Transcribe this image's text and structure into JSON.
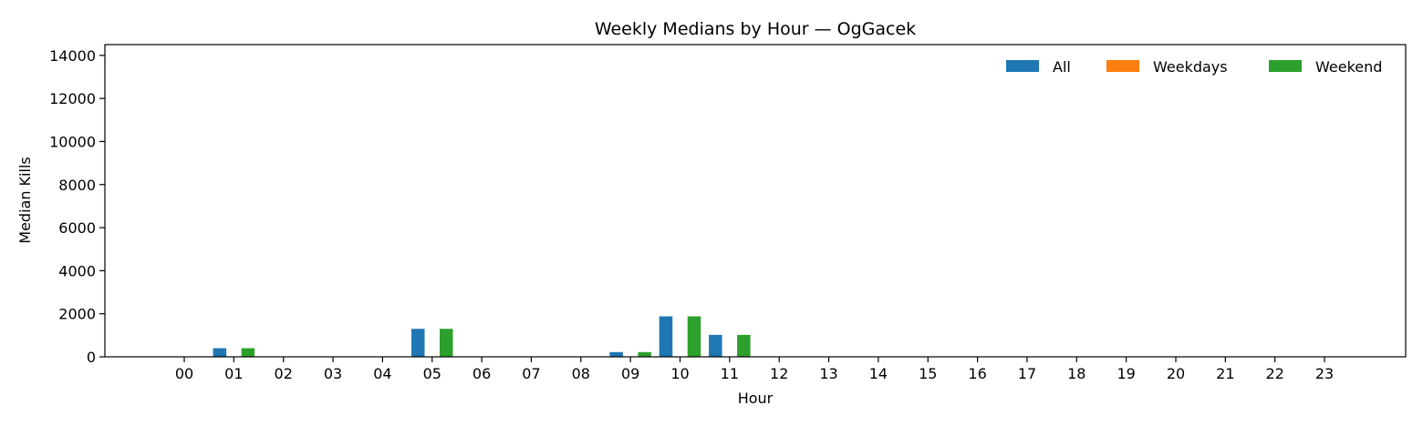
{
  "chart_data": {
    "type": "bar",
    "title": "Weekly Medians by Hour — OgGacek",
    "xlabel": "Hour",
    "ylabel": "Median Kills",
    "ylim": [
      0,
      14500
    ],
    "yticks": [
      0,
      2000,
      4000,
      6000,
      8000,
      10000,
      12000,
      14000
    ],
    "categories": [
      "00",
      "01",
      "02",
      "03",
      "04",
      "05",
      "06",
      "07",
      "08",
      "09",
      "10",
      "11",
      "12",
      "13",
      "14",
      "15",
      "16",
      "17",
      "18",
      "19",
      "20",
      "21",
      "22",
      "23"
    ],
    "series": [
      {
        "name": "All",
        "color": "#1f77b4",
        "values": [
          0,
          400,
          0,
          0,
          0,
          1300,
          0,
          0,
          0,
          220,
          1880,
          1020,
          0,
          0,
          0,
          0,
          0,
          0,
          0,
          0,
          0,
          0,
          0,
          0
        ]
      },
      {
        "name": "Weekdays",
        "color": "#ff7f0e",
        "values": [
          0,
          0,
          0,
          0,
          0,
          0,
          0,
          0,
          0,
          0,
          0,
          0,
          0,
          0,
          0,
          0,
          0,
          0,
          0,
          0,
          0,
          0,
          0,
          0
        ]
      },
      {
        "name": "Weekend",
        "color": "#2ca02c",
        "values": [
          0,
          400,
          0,
          0,
          0,
          1300,
          0,
          0,
          0,
          220,
          1880,
          1020,
          0,
          0,
          0,
          0,
          0,
          0,
          0,
          0,
          0,
          0,
          0,
          0
        ]
      }
    ],
    "grid": false,
    "legend_position": "top-right"
  }
}
